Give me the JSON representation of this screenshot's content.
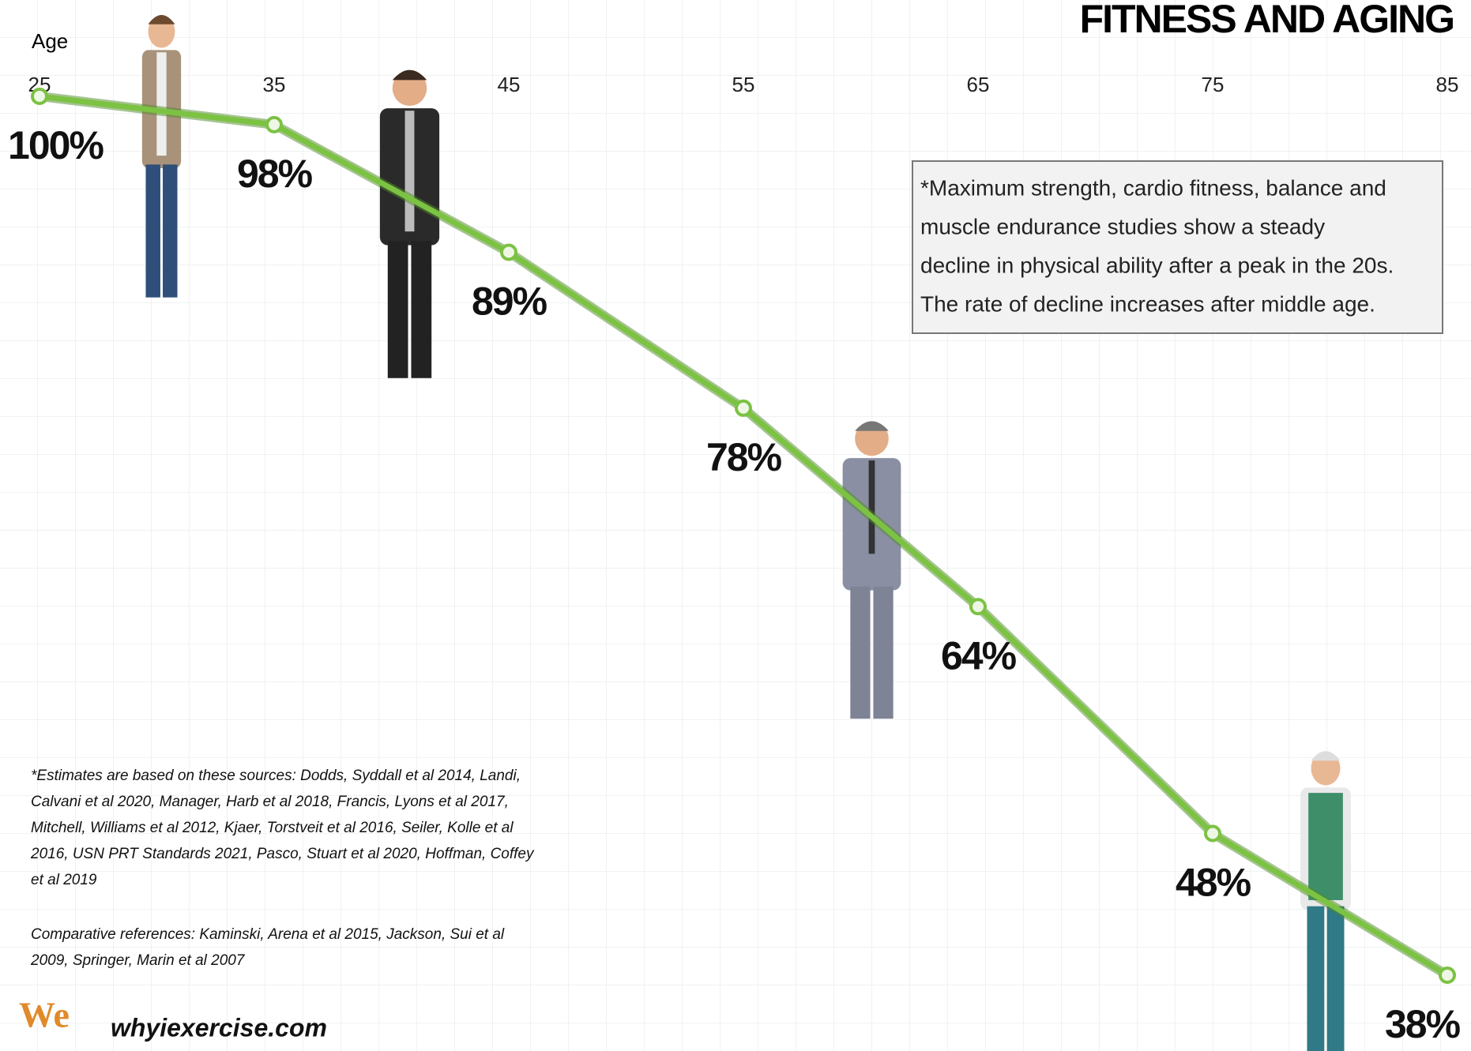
{
  "chart_data": {
    "type": "line",
    "title": "FITNESS AND AGING",
    "xlabel": "Age",
    "x": [
      25,
      35,
      45,
      55,
      65,
      75,
      85
    ],
    "xlim": [
      25,
      85
    ],
    "xticks": [
      25,
      35,
      45,
      55,
      65,
      75,
      85
    ],
    "series": [
      {
        "color": "#7cc243",
        "values": [
          100,
          98,
          89,
          78,
          64,
          48,
          38
        ],
        "value_labels": [
          "100%",
          "98%",
          "89%",
          "78%",
          "64%",
          "48%",
          "38%"
        ]
      }
    ],
    "grid": true,
    "note": [
      "*Maximum strength, cardio fitness, balance and",
      "muscle endurance studies show a steady",
      "decline in physical ability after a peak in the 20s.",
      "The rate of decline increases after middle age."
    ],
    "sources": [
      "*Estimates are based on these sources:  Dodds, Syddall et al 2014, Landi,",
      "Calvani et al 2020, Manager, Harb et al 2018, Francis, Lyons et al 2017,",
      "Mitchell, Williams et al 2012,  Kjaer, Torstveit et al 2016, Seiler, Kolle et al",
      "2016, USN PRT Standards 2021, Pasco, Stuart et al 2020, Hoffman, Coffey",
      "et al 2019"
    ],
    "references": [
      "Comparative references:  Kaminski, Arena et al 2015, Jackson, Sui et al",
      "2009, Springer, Marin et al 2007"
    ],
    "logo": "We",
    "website": "whyiexercise.com"
  }
}
